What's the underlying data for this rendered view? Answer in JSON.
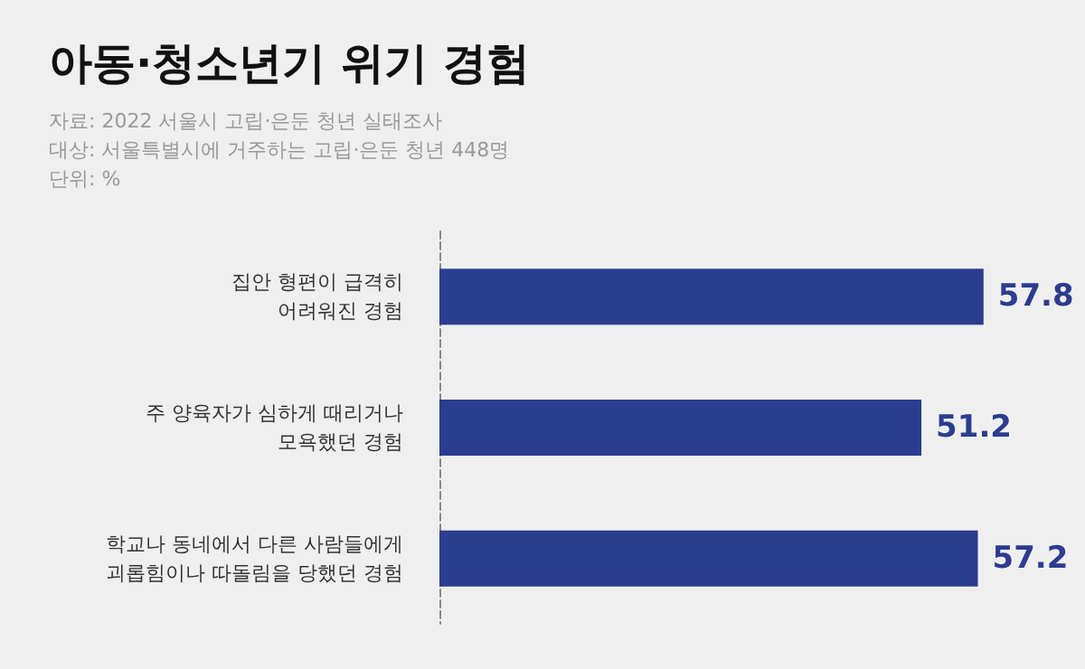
{
  "chart_data": {
    "type": "bar",
    "orientation": "horizontal",
    "title": "아동·청소년기 위기 경험",
    "subtitle": "자료: 2022 서울시 고립·은둔 청년 실태조사\n대상: 서울특별시에 거주하는 고립·은둔 청년 448명\n단위: %",
    "categories": [
      "집안 형편이 급격히\n어려워진 경험",
      "주 양육자가 심하게 때리거나\n모욕했던 경험",
      "학교나 동네에서 다른 사람들에게\n괴롭힘이나 따돌림을 당했던 경험"
    ],
    "values": [
      57.8,
      51.2,
      57.2
    ],
    "color": "#2b3d8f",
    "data_labels": true
  }
}
